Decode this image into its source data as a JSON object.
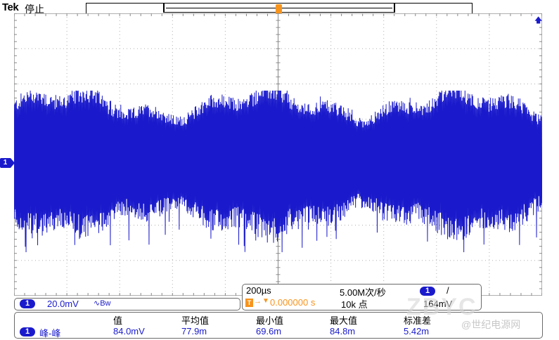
{
  "header": {
    "brand": "Tek",
    "acquisition_state": "停止"
  },
  "scope": {
    "trace_color": "#1a1acc",
    "trigger_color": "#f7941d",
    "grid_color": "#b0b0b0",
    "trigger_marker": "T",
    "channel_marker": "1",
    "trigger_level_marker_icon": "arrow-up-icon"
  },
  "channel": {
    "number": "1",
    "scale": "20.0mV",
    "bandwidth_icon": "∿Bw"
  },
  "timebase": {
    "horizontal_scale": "200µs",
    "sample_rate": "5.00M次/秒",
    "trigger_position": "0.000000 s",
    "record_length": "10k 点",
    "trigger_channel": "1",
    "trigger_slope": "/",
    "trigger_level": "164mV"
  },
  "measurements": {
    "headers": [
      "值",
      "平均值",
      "最小值",
      "最大值",
      "标准差"
    ],
    "row": {
      "channel": "1",
      "name": "峰-峰",
      "values": [
        "84.0mV",
        "77.9m",
        "69.6m",
        "84.8m",
        "5.42m"
      ]
    }
  },
  "watermark": {
    "large": "ZBYC",
    "small": "@世纪电源网"
  }
}
